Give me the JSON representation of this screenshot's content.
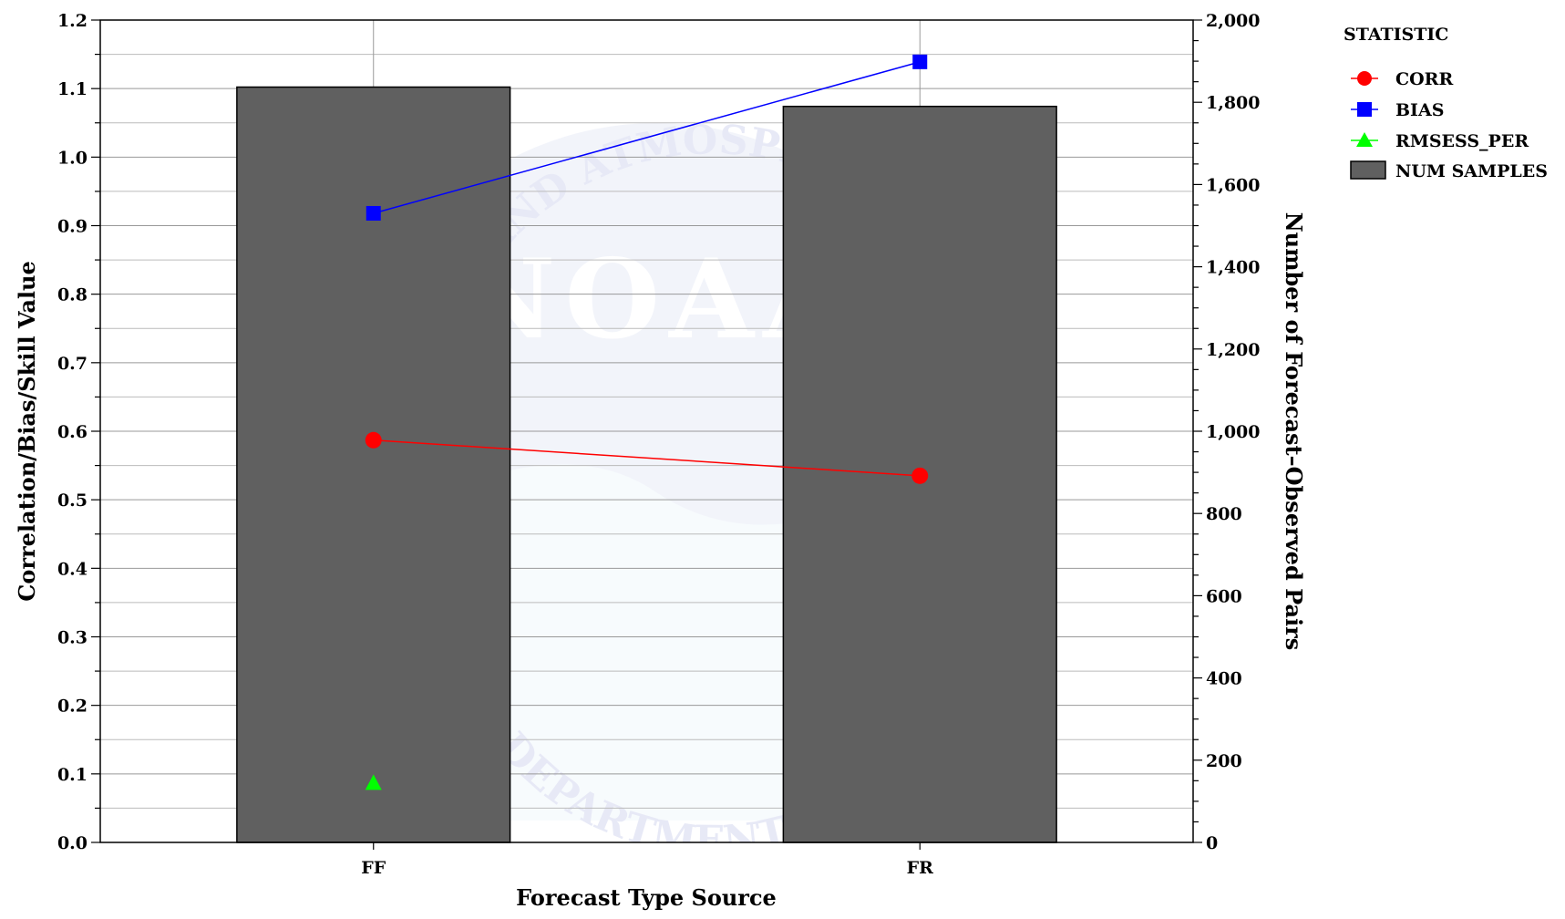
{
  "chart_data": {
    "type": "bar",
    "xlabel": "Forecast Type Source",
    "ylabel_left": "Correlation/Bias/Skill Value",
    "ylabel_right": "Number of Forecast–Observed Pairs",
    "categories": [
      "FF",
      "FR"
    ],
    "ylim_left": [
      0,
      1.2
    ],
    "ylim_right": [
      0,
      2000
    ],
    "y_ticks_left": [
      "0.0",
      "0.1",
      "0.2",
      "0.3",
      "0.4",
      "0.5",
      "0.6",
      "0.7",
      "0.8",
      "0.9",
      "1.0",
      "1.1",
      "1.2"
    ],
    "y_ticks_right": [
      "0",
      "200",
      "400",
      "600",
      "800",
      "1,000",
      "1,200",
      "1,400",
      "1,600",
      "1,800",
      "2,000"
    ],
    "grid": true,
    "legend": {
      "title": "STATISTIC",
      "placement": "right"
    },
    "series": [
      {
        "name": "CORR",
        "kind": "line",
        "axis": "left",
        "color": "#ff0000",
        "marker": "circle",
        "values": [
          0.587,
          0.535
        ]
      },
      {
        "name": "BIAS",
        "kind": "line",
        "axis": "left",
        "color": "#0000ff",
        "marker": "square",
        "values": [
          0.918,
          1.139
        ]
      },
      {
        "name": "RMSESS_PER",
        "kind": "line",
        "axis": "left",
        "color": "#00ff00",
        "marker": "triangle",
        "values": [
          0.086,
          null
        ]
      },
      {
        "name": "NUM SAMPLES",
        "kind": "bar",
        "axis": "right",
        "color": "#606060",
        "values": [
          1837,
          1790
        ]
      }
    ],
    "watermark": {
      "top_text": "AND ATMOSPHERIC",
      "center_text": "NOAA",
      "bottom_text": "DEPARTMENT OF COMMERCE"
    }
  }
}
